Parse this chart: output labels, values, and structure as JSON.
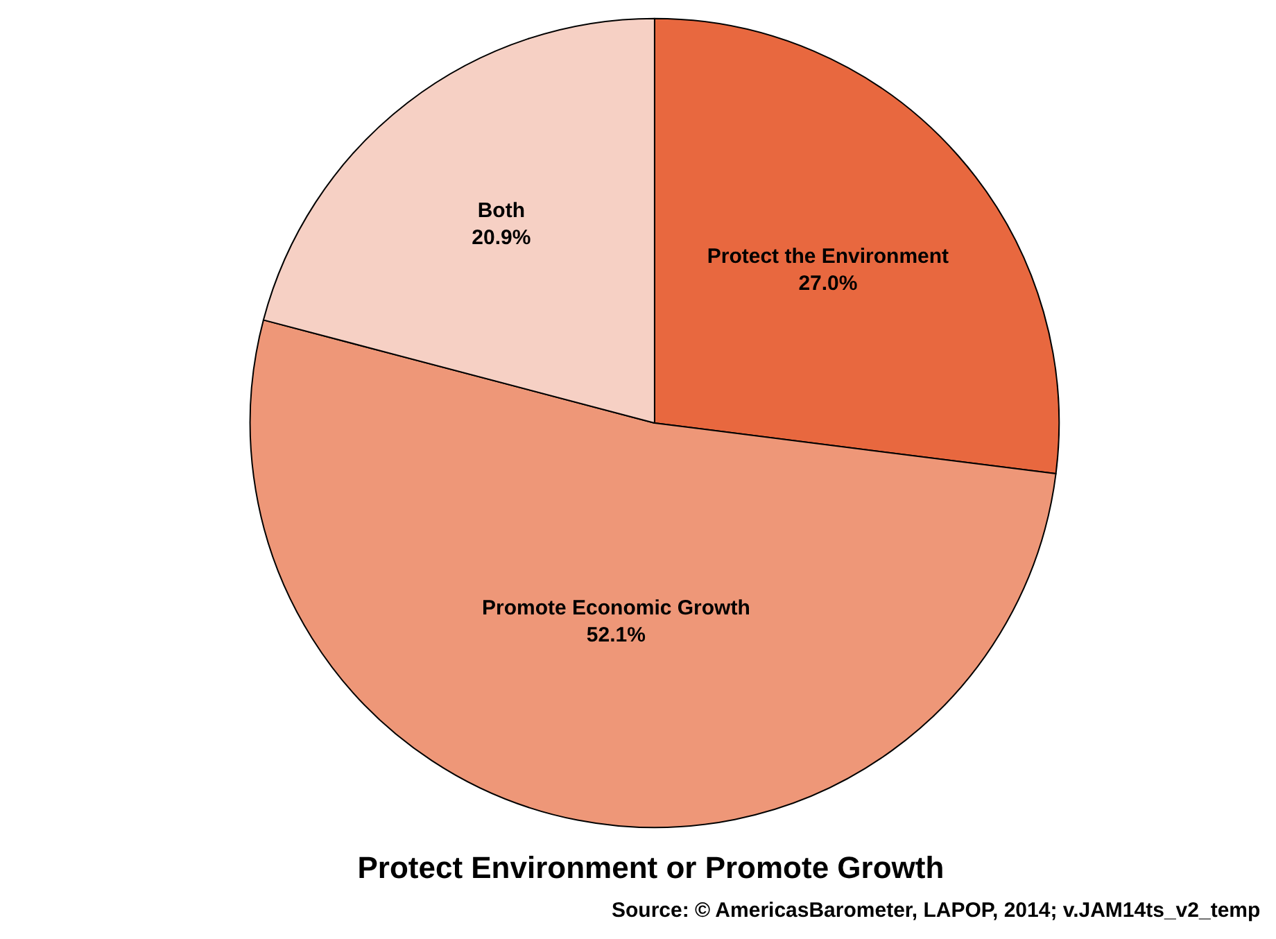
{
  "chart_data": {
    "type": "pie",
    "title": "Protect Environment or Promote Growth",
    "categories": [
      "Protect the Environment",
      "Promote Economic Growth",
      "Both"
    ],
    "values": [
      27.0,
      52.1,
      20.9
    ],
    "colors": [
      "#e8683f",
      "#ee9778",
      "#f6d0c4"
    ],
    "value_labels": [
      "27.0%",
      "52.1%",
      "20.9%"
    ],
    "legend": false,
    "annotations": [
      "Source: © AmericasBarometer, LAPOP, 2014; v.JAM14ts_v2_temp"
    ]
  }
}
